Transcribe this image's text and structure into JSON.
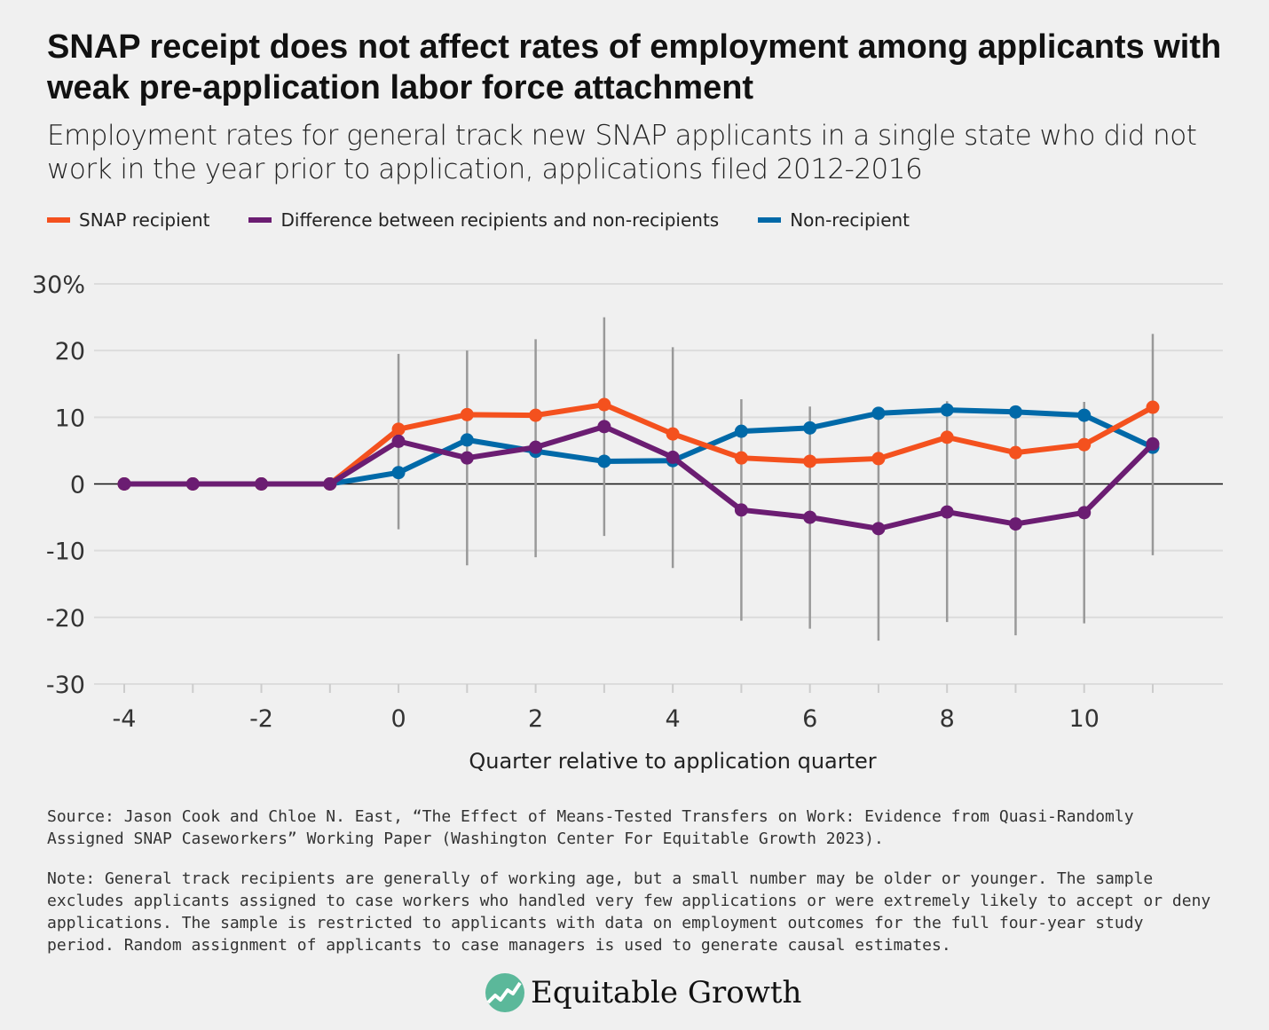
{
  "title": "SNAP receipt does not affect rates of employment among applicants with weak pre-application labor force attachment",
  "subtitle": "Employment rates for general track new SNAP applicants in a single state who did not work in the year prior to application, applications filed 2012-2016",
  "source": "Source: Jason Cook and Chloe N. East, “The Effect of Means-Tested Transfers on Work: Evidence from Quasi-Randomly Assigned SNAP Caseworkers” Working Paper (Washington Center For Equitable Growth 2023).",
  "note": "Note: General track recipients are generally of working age, but a small number may be older or younger. The sample excludes applicants assigned to case workers who handled very few applications or were extremely likely to accept or deny applications. The sample is restricted to applicants with data on employment outcomes for the full four-year study period. Random assignment of applicants to case managers is used to generate causal estimates.",
  "logo": {
    "text": "Equitable Growth",
    "icon": "rising-line-circle-icon",
    "color": "#5bb89a"
  },
  "chart_data": {
    "type": "line",
    "title": "",
    "xlabel": "Quarter relative to application quarter",
    "ylabel": "",
    "x": [
      -4,
      -3,
      -2,
      -1,
      0,
      1,
      2,
      3,
      4,
      5,
      6,
      7,
      8,
      9,
      10,
      11
    ],
    "xlim": [
      -4,
      11
    ],
    "ylim": [
      -30,
      30
    ],
    "xticks": [
      -4,
      -2,
      0,
      2,
      4,
      6,
      8,
      10
    ],
    "xtick_labels": [
      "-4",
      "-2",
      "0",
      "2",
      "4",
      "6",
      "8",
      "10"
    ],
    "yticks": [
      30,
      20,
      10,
      0,
      -10,
      -20,
      -30
    ],
    "ytick_labels": [
      "30%",
      "20",
      "10",
      "0",
      "-10",
      "-20",
      "-30"
    ],
    "grid": "horizontal",
    "legend_position": "top-left",
    "series": [
      {
        "name": "SNAP recipient",
        "color": "#f4511e",
        "values": [
          0,
          0,
          0,
          0,
          8.2,
          10.4,
          10.3,
          11.9,
          7.5,
          3.9,
          3.4,
          3.8,
          7.0,
          4.7,
          5.9,
          11.5
        ]
      },
      {
        "name": "Difference between recipients and non-recipients",
        "color": "#6b1d72",
        "values": [
          0,
          0,
          0,
          0,
          6.4,
          3.9,
          5.5,
          8.6,
          4.0,
          -3.9,
          -5.0,
          -6.7,
          -4.2,
          -6.0,
          -4.3,
          6.0
        ],
        "error_bars": {
          "color": "#999999",
          "lower": [
            null,
            null,
            null,
            null,
            -6.8,
            -12.2,
            -11.0,
            -7.8,
            -12.6,
            -20.5,
            -21.7,
            -23.5,
            -20.7,
            -22.7,
            -20.9,
            -10.7
          ],
          "upper": [
            null,
            null,
            null,
            null,
            19.5,
            20.0,
            21.7,
            25.0,
            20.5,
            12.7,
            11.6,
            11.5,
            12.4,
            11.4,
            12.3,
            22.5
          ]
        }
      },
      {
        "name": "Non-recipient",
        "color": "#0069a8",
        "values": [
          0,
          0,
          0,
          0,
          1.7,
          6.6,
          4.9,
          3.4,
          3.5,
          7.9,
          8.4,
          10.6,
          11.1,
          10.8,
          10.3,
          5.5
        ]
      }
    ]
  }
}
